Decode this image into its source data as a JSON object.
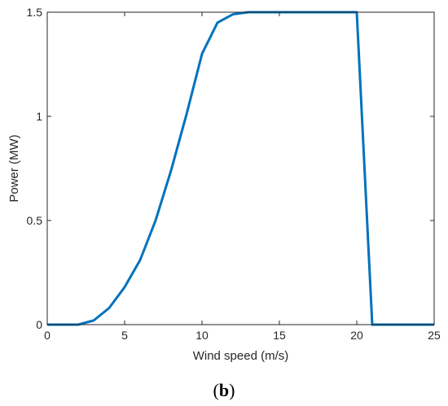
{
  "chart_data": {
    "type": "line",
    "xlabel": "Wind speed (m/s)",
    "ylabel": "Power (MW)",
    "xlim": [
      0,
      25
    ],
    "ylim": [
      0,
      1.5
    ],
    "xticks": [
      0,
      5,
      10,
      15,
      20,
      25
    ],
    "xtick_labels": [
      "0",
      "5",
      "10",
      "15",
      "20",
      "25"
    ],
    "yticks": [
      0,
      0.5,
      1,
      1.5
    ],
    "ytick_labels": [
      "0",
      "0.5",
      "1",
      "1.5"
    ],
    "grid": false,
    "line_color": "#0072BD",
    "series": [
      {
        "x": [
          0,
          1,
          2,
          3,
          4,
          5,
          6,
          7,
          8,
          9,
          10,
          11,
          12,
          13,
          14,
          15,
          16,
          17,
          18,
          19,
          20,
          21,
          22,
          23,
          24,
          25
        ],
        "y": [
          0,
          0,
          0,
          0.02,
          0.08,
          0.18,
          0.31,
          0.5,
          0.74,
          1.01,
          1.3,
          1.45,
          1.49,
          1.5,
          1.5,
          1.5,
          1.5,
          1.5,
          1.5,
          1.5,
          1.5,
          0,
          0,
          0,
          0,
          0
        ]
      }
    ]
  },
  "caption": {
    "open": "(",
    "letter": "b",
    "close": ")"
  }
}
